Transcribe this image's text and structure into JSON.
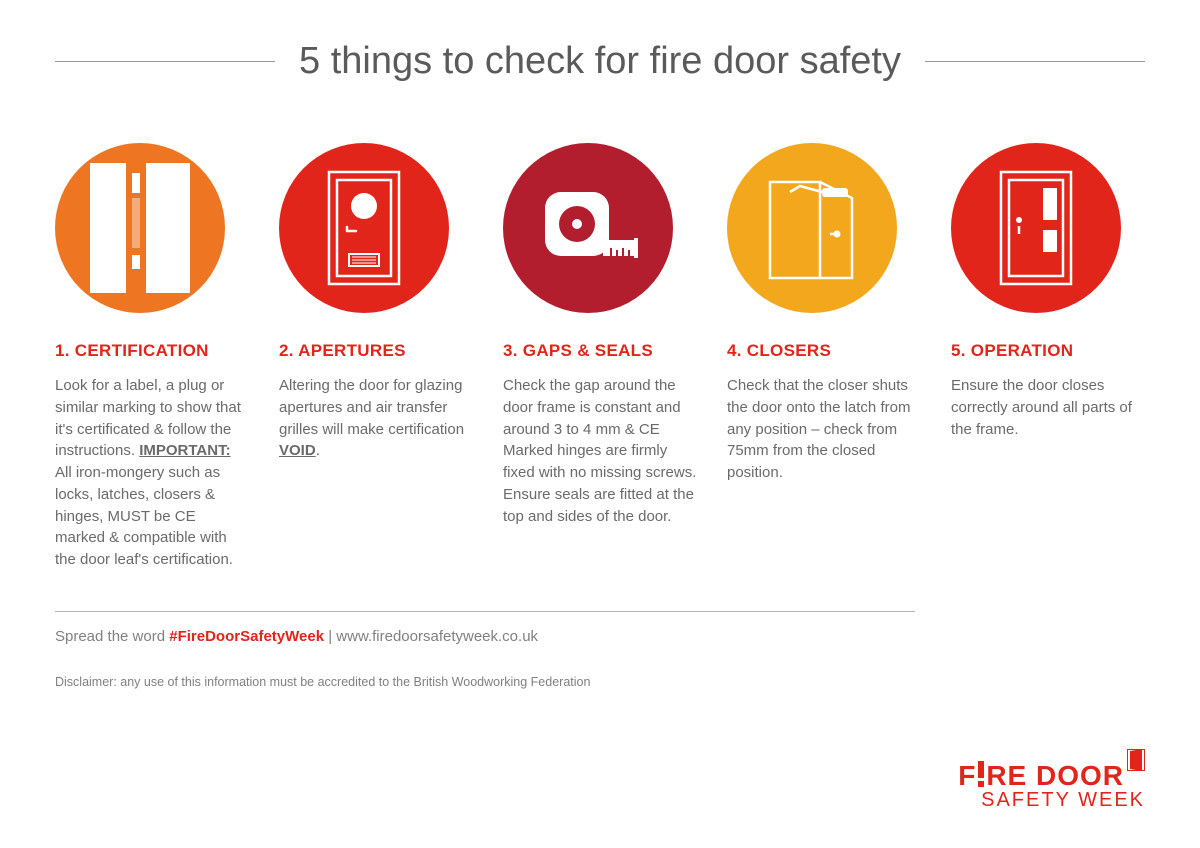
{
  "title": "5 things to check for fire door safety",
  "colors": {
    "accent": "#e1251b",
    "text": "#6a6a6a",
    "heading_text": "#5a5a5a",
    "rule": "#9a9a9a",
    "circles": [
      "#ee7623",
      "#e1251b",
      "#b31e2f",
      "#f3a71c",
      "#e1251b"
    ]
  },
  "items": [
    {
      "icon": "door-edge-icon",
      "heading": "1. CERTIFICATION",
      "body_html": "Look for a label, a plug or similar marking to show that it's certificated & follow the instructions. <span class='bold'>IMPORTANT:</span> All iron-mongery such as locks, latches, closers & hinges, MUST be CE marked & compatible with the door leaf's certification."
    },
    {
      "icon": "door-aperture-icon",
      "heading": "2. APERTURES",
      "body_html": "Altering the door for glazing apertures and air transfer grilles will make certification <span class='bold'>VOID</span>."
    },
    {
      "icon": "tape-measure-icon",
      "heading": "3. GAPS & SEALS",
      "body_html": "Check the gap around the door frame is constant and around 3 to 4 mm & CE Marked hinges are firmly fixed with no missing screws. Ensure seals are fitted at the top and sides of the door."
    },
    {
      "icon": "door-closer-icon",
      "heading": "4. CLOSERS",
      "body_html": "Check that the closer shuts the door onto the latch from any position – check from 75mm from the closed position."
    },
    {
      "icon": "door-operation-icon",
      "heading": "5. OPERATION",
      "body_html": "Ensure the door closes correctly around all parts of the frame."
    }
  ],
  "footer": {
    "spread_prefix": "Spread the word ",
    "hashtag": "#FireDoorSafetyWeek",
    "separator": " | ",
    "url": "www.firedoorsafetyweek.co.uk",
    "disclaimer": "Disclaimer: any use of this information must be accredited to the British Woodworking Federation"
  },
  "logo": {
    "line1_a": "F",
    "line1_b": "RE DOOR",
    "line2": "SAFETY WEEK"
  }
}
